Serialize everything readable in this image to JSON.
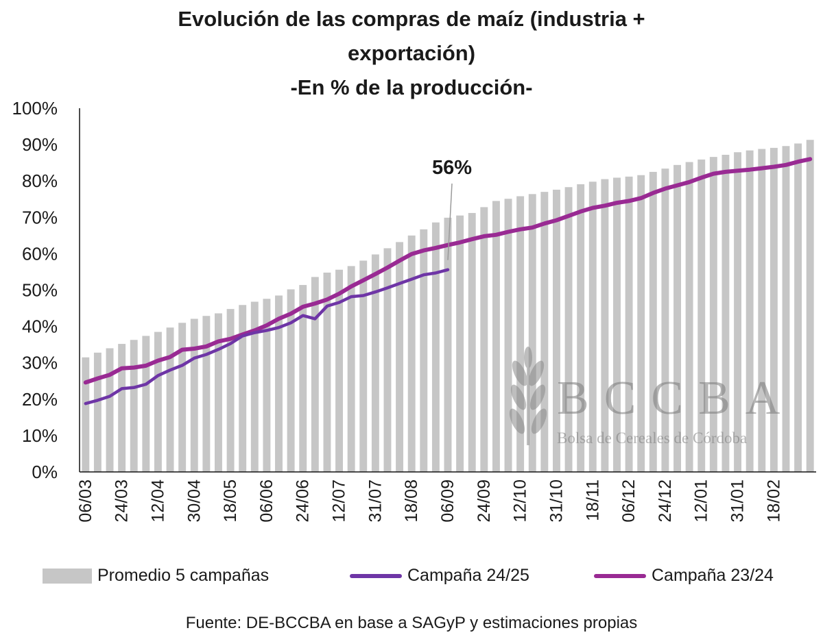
{
  "chart_data": {
    "type": "bar",
    "title_lines": [
      "Evolución de las compras de maíz (industria +",
      "exportación)",
      "-En % de la producción-"
    ],
    "y_ticks": [
      "0%",
      "10%",
      "20%",
      "30%",
      "40%",
      "50%",
      "60%",
      "70%",
      "80%",
      "90%",
      "100%"
    ],
    "ylim": [
      0,
      100
    ],
    "x_tick_labels": [
      {
        "i": 0,
        "label": "06/03"
      },
      {
        "i": 3,
        "label": "24/03"
      },
      {
        "i": 6,
        "label": "12/04"
      },
      {
        "i": 9,
        "label": "30/04"
      },
      {
        "i": 12,
        "label": "18/05"
      },
      {
        "i": 15,
        "label": "06/06"
      },
      {
        "i": 18,
        "label": "24/06"
      },
      {
        "i": 21,
        "label": "12/07"
      },
      {
        "i": 24,
        "label": "31/07"
      },
      {
        "i": 27,
        "label": "18/08"
      },
      {
        "i": 30,
        "label": "06/09"
      },
      {
        "i": 33,
        "label": "24/09"
      },
      {
        "i": 36,
        "label": "12/10"
      },
      {
        "i": 39,
        "label": "31/10"
      },
      {
        "i": 42,
        "label": "18/11"
      },
      {
        "i": 45,
        "label": "06/12"
      },
      {
        "i": 48,
        "label": "24/12"
      },
      {
        "i": 51,
        "label": "12/01"
      },
      {
        "i": 54,
        "label": "31/01"
      },
      {
        "i": 57,
        "label": "18/02"
      }
    ],
    "series": [
      {
        "name": "Promedio 5 campañas",
        "kind": "bar",
        "color": "#c6c6c6",
        "values": [
          31.5,
          32.8,
          34,
          35.2,
          36.3,
          37.4,
          38.5,
          39.7,
          41,
          42.1,
          42.9,
          43.6,
          44.8,
          45.9,
          46.8,
          47.6,
          48.5,
          50.2,
          51.4,
          53.6,
          54.8,
          55.6,
          56.6,
          58.1,
          59.8,
          61.5,
          63.2,
          65,
          66.7,
          68.6,
          69.9,
          70.5,
          71.2,
          72.8,
          74.5,
          75.1,
          75.8,
          76.4,
          77,
          77.6,
          78.3,
          79.1,
          79.8,
          80.5,
          80.9,
          81.2,
          81.6,
          82.5,
          83.4,
          84.4,
          85.2,
          85.9,
          86.6,
          87.2,
          87.9,
          88.4,
          88.8,
          89.1,
          89.6,
          90.3,
          91.3
        ]
      },
      {
        "name": "Campaña 24/25",
        "kind": "line",
        "color": "#6e35a6",
        "values": [
          18.8,
          19.7,
          20.8,
          22.9,
          23.2,
          24.1,
          26.5,
          28,
          29.3,
          31.3,
          32.3,
          33.7,
          35.3,
          37.4,
          38.3,
          38.9,
          39.7,
          41,
          43,
          42.1,
          45.6,
          46.6,
          48.2,
          48.5,
          49.5,
          50.6,
          51.8,
          53,
          54.2,
          54.7,
          55.6
        ]
      },
      {
        "name": "Campaña 23/24",
        "kind": "line",
        "color": "#992a93",
        "values": [
          24.6,
          25.7,
          26.7,
          28.5,
          28.7,
          29.2,
          30.6,
          31.6,
          33.6,
          33.9,
          34.5,
          35.9,
          36.6,
          37.8,
          38.9,
          40.3,
          42.1,
          43.5,
          45.4,
          46.3,
          47.4,
          49,
          51,
          52.7,
          54.4,
          56.2,
          58.1,
          59.9,
          60.9,
          61.6,
          62.4,
          63.1,
          64,
          64.8,
          65.2,
          66,
          66.7,
          67.2,
          68.3,
          69.2,
          70.4,
          71.6,
          72.6,
          73.2,
          74,
          74.5,
          75.3,
          76.7,
          77.9,
          78.8,
          79.7,
          80.9,
          82,
          82.5,
          82.8,
          83.1,
          83.5,
          83.9,
          84.4,
          85.3,
          86
        ]
      }
    ],
    "annotation": "56%",
    "legend": {
      "placement": "bottom"
    },
    "source": "Fuente: DE-BCCBA en base a SAGyP y estimaciones propias",
    "watermark": {
      "big": "BCCBA",
      "small": "Bolsa de Cereales de Córdoba"
    }
  }
}
